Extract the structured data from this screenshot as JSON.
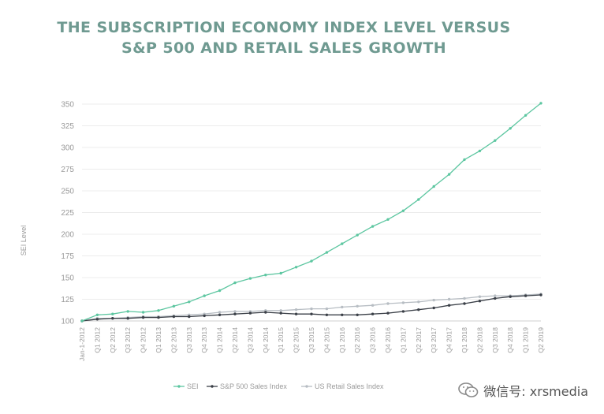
{
  "chart_data": {
    "type": "line",
    "title": "THE SUBSCRIPTION ECONOMY INDEX LEVEL VERSUS",
    "subtitle": "S&P 500 AND RETAIL SALES GROWTH",
    "ylabel": "SEI Level",
    "ylim": [
      100,
      350
    ],
    "yticks": [
      100,
      125,
      150,
      175,
      200,
      225,
      250,
      275,
      300,
      325,
      350
    ],
    "grid": true,
    "legend_position": "bottom",
    "categories": [
      "Jan-1-2012",
      "Q1 2012",
      "Q2 2012",
      "Q3 2012",
      "Q4 2012",
      "Q1 2013",
      "Q2 2013",
      "Q3 2013",
      "Q4 2013",
      "Q1 2014",
      "Q2 2014",
      "Q3 2014",
      "Q4 2014",
      "Q1 2015",
      "Q2 2015",
      "Q3 2015",
      "Q4 2015",
      "Q1 2016",
      "Q2 2016",
      "Q3 2016",
      "Q4 2016",
      "Q1 2017",
      "Q2 2017",
      "Q3 2017",
      "Q4 2017",
      "Q1 2018",
      "Q2 2018",
      "Q3 2018",
      "Q4 2018",
      "Q1 2019",
      "Q2 2019"
    ],
    "series": [
      {
        "name": "SEI",
        "color": "#5cc6a0",
        "values": [
          100,
          107,
          108,
          111,
          110,
          112,
          117,
          122,
          129,
          135,
          144,
          149,
          153,
          155,
          162,
          169,
          179,
          189,
          199,
          209,
          217,
          227,
          240,
          255,
          269,
          286,
          296,
          308,
          322,
          337,
          351
        ]
      },
      {
        "name": "S&P 500 Sales Index",
        "color": "#3a3f47",
        "values": [
          100,
          102,
          103,
          103,
          104,
          104,
          105,
          105,
          106,
          107,
          108,
          109,
          110,
          109,
          108,
          108,
          107,
          107,
          107,
          108,
          109,
          111,
          113,
          115,
          118,
          120,
          123,
          126,
          128,
          129,
          130
        ]
      },
      {
        "name": "US Retail Sales Index",
        "color": "#b7bdc3",
        "values": [
          100,
          103,
          103,
          104,
          105,
          105,
          106,
          107,
          108,
          110,
          111,
          111,
          112,
          112,
          113,
          114,
          114,
          116,
          117,
          118,
          120,
          121,
          122,
          124,
          125,
          126,
          128,
          129,
          129,
          130,
          131
        ]
      }
    ]
  },
  "watermark": {
    "text": "微信号: xrsmedia",
    "icon": "wechat-icon"
  }
}
